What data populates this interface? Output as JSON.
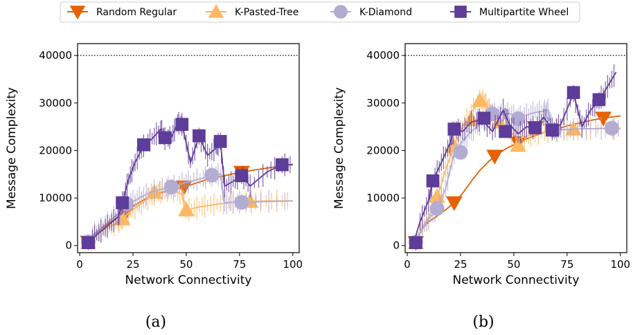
{
  "legend": {
    "entries": [
      {
        "name": "Random Regular",
        "color": "#e66101",
        "marker": "triangle-down"
      },
      {
        "name": "K-Pasted-Tree",
        "color": "#fdb863",
        "marker": "triangle-up"
      },
      {
        "name": "K-Diamond",
        "color": "#b2abd2",
        "marker": "circle"
      },
      {
        "name": "Multipartite Wheel",
        "color": "#5e3c99",
        "marker": "square"
      }
    ]
  },
  "chart_data": [
    {
      "type": "line",
      "caption": "(a)",
      "xlabel": "Network Connectivity",
      "ylabel": "Message Complexity",
      "xlim": [
        -1,
        103
      ],
      "ylim": [
        -1500,
        42500
      ],
      "xticks": [
        0,
        25,
        50,
        75,
        100
      ],
      "yticks": [
        0,
        10000,
        20000,
        30000,
        40000
      ],
      "reference_line": {
        "y": 40000,
        "style": "dotted"
      },
      "grid": false,
      "series": [
        {
          "name": "Random Regular",
          "x": [
            3,
            6,
            10,
            14,
            18,
            22,
            26,
            30,
            35,
            40,
            45,
            49,
            55,
            60,
            66,
            70,
            76,
            82,
            88,
            94,
            100
          ],
          "y": [
            700,
            1800,
            3500,
            4800,
            6000,
            7200,
            8500,
            9600,
            10700,
            11300,
            11900,
            12300,
            13200,
            13900,
            14500,
            14900,
            15400,
            15900,
            16300,
            16700,
            17100
          ],
          "markers_x": [
            4,
            22,
            49,
            76
          ],
          "markers_y": [
            700,
            7200,
            12300,
            15400
          ]
        },
        {
          "name": "K-Pasted-Tree",
          "x": [
            3,
            6,
            10,
            14,
            18,
            20,
            24,
            28,
            32,
            36,
            40,
            44,
            48,
            50,
            55,
            60,
            66,
            72,
            80,
            90,
            100
          ],
          "y": [
            600,
            1800,
            3000,
            4000,
            4800,
            5600,
            7200,
            8600,
            9800,
            11000,
            11500,
            11500,
            10800,
            7500,
            8000,
            8400,
            8800,
            9100,
            9300,
            9400,
            9400
          ],
          "markers_x": [
            4,
            20,
            35,
            50,
            80
          ],
          "markers_y": [
            600,
            5600,
            11200,
            7500,
            9300
          ]
        },
        {
          "name": "K-Diamond",
          "x": [
            3,
            6,
            10,
            14,
            18,
            22,
            26,
            30,
            35,
            40,
            43,
            48,
            52,
            58,
            62,
            66,
            68,
            72,
            76,
            85,
            100
          ],
          "y": [
            800,
            2200,
            3600,
            5200,
            6600,
            8800,
            9500,
            10500,
            11500,
            12000,
            12300,
            13000,
            13500,
            14200,
            14800,
            15000,
            9000,
            9100,
            9100,
            9200,
            9400
          ],
          "markers_x": [
            4,
            22,
            43,
            62,
            76
          ],
          "markers_y": [
            800,
            8800,
            12300,
            14800,
            9100
          ]
        },
        {
          "name": "Multipartite Wheel",
          "x": [
            3,
            6,
            10,
            14,
            18,
            20,
            23,
            26,
            30,
            34,
            38,
            40,
            43,
            46,
            48,
            52,
            56,
            60,
            64,
            66,
            68,
            72,
            76,
            80,
            88,
            95,
            100
          ],
          "y": [
            600,
            1500,
            3000,
            4500,
            6000,
            9000,
            14000,
            17500,
            21000,
            22500,
            24500,
            22500,
            22800,
            25800,
            25500,
            17500,
            23000,
            19000,
            20500,
            22000,
            12500,
            13500,
            14800,
            12500,
            15500,
            17000,
            17000
          ],
          "markers_x": [
            4,
            20,
            30,
            40,
            48,
            56,
            66,
            76,
            95
          ],
          "markers_y": [
            600,
            9000,
            21200,
            22700,
            25500,
            23100,
            21900,
            14700,
            17000
          ]
        }
      ]
    },
    {
      "type": "line",
      "caption": "(b)",
      "xlabel": "Network Connectivity",
      "ylabel": "Message Complexity",
      "xlim": [
        -1,
        103
      ],
      "ylim": [
        -1500,
        42500
      ],
      "xticks": [
        0,
        25,
        50,
        75,
        100
      ],
      "yticks": [
        0,
        10000,
        20000,
        30000,
        40000
      ],
      "reference_line": {
        "y": 40000,
        "style": "dotted"
      },
      "grid": false,
      "series": [
        {
          "name": "Random Regular",
          "x": [
            3,
            6,
            10,
            14,
            18,
            22,
            26,
            30,
            34,
            38,
            41,
            46,
            52,
            58,
            64,
            70,
            76,
            82,
            88,
            92,
            100
          ],
          "y": [
            600,
            3000,
            5000,
            6200,
            7500,
            9000,
            11000,
            13500,
            15800,
            17600,
            18800,
            20300,
            21700,
            22800,
            23800,
            24500,
            25300,
            25900,
            26500,
            26800,
            27300
          ],
          "markers_x": [
            4,
            22,
            41,
            52,
            60,
            92
          ],
          "markers_y": [
            600,
            9000,
            18800,
            21600,
            24800,
            26800
          ]
        },
        {
          "name": "K-Pasted-Tree",
          "x": [
            3,
            6,
            10,
            14,
            18,
            22,
            26,
            30,
            34,
            36,
            38,
            40,
            44,
            48,
            52,
            56,
            60,
            66,
            72,
            78,
            86,
            100
          ],
          "y": [
            600,
            3000,
            6000,
            10000,
            16000,
            21000,
            25000,
            28000,
            30500,
            30500,
            29000,
            27500,
            26000,
            24000,
            22500,
            23000,
            23500,
            24000,
            24300,
            24500,
            24600,
            24600
          ],
          "markers_x": [
            4,
            14,
            22,
            30,
            34,
            43,
            52,
            78
          ],
          "markers_y": [
            600,
            10300,
            20900,
            26500,
            30500,
            26000,
            21100,
            24500
          ]
        },
        {
          "name": "K-Diamond",
          "x": [
            3,
            6,
            10,
            14,
            18,
            22,
            26,
            30,
            34,
            38,
            40,
            44,
            48,
            52,
            56,
            60,
            64,
            66,
            68,
            72,
            78,
            86,
            96,
            100
          ],
          "y": [
            700,
            2500,
            5500,
            7800,
            12000,
            19500,
            22000,
            24000,
            25500,
            27000,
            27800,
            27500,
            27800,
            27000,
            27500,
            28000,
            28300,
            28500,
            24200,
            24400,
            24500,
            24600,
            24700,
            24700
          ],
          "markers_x": [
            4,
            14,
            25,
            40,
            52,
            69,
            96
          ],
          "markers_y": [
            700,
            7800,
            19600,
            27700,
            26700,
            24200,
            24700
          ]
        },
        {
          "name": "Multipartite Wheel",
          "x": [
            3,
            6,
            10,
            12,
            16,
            20,
            22,
            26,
            30,
            35,
            40,
            45,
            48,
            52,
            56,
            60,
            64,
            68,
            72,
            78,
            82,
            86,
            90,
            94,
            98
          ],
          "y": [
            600,
            5000,
            9500,
            13600,
            17500,
            21500,
            24500,
            24000,
            26000,
            26500,
            24000,
            28500,
            25500,
            23500,
            25000,
            24800,
            27000,
            24500,
            25500,
            32000,
            25000,
            28500,
            30500,
            33500,
            36500
          ],
          "markers_x": [
            4,
            12,
            22,
            36,
            46,
            60,
            68,
            78,
            90
          ],
          "markers_y": [
            600,
            13600,
            24500,
            26800,
            24000,
            24800,
            24300,
            32200,
            30700
          ]
        }
      ]
    }
  ]
}
